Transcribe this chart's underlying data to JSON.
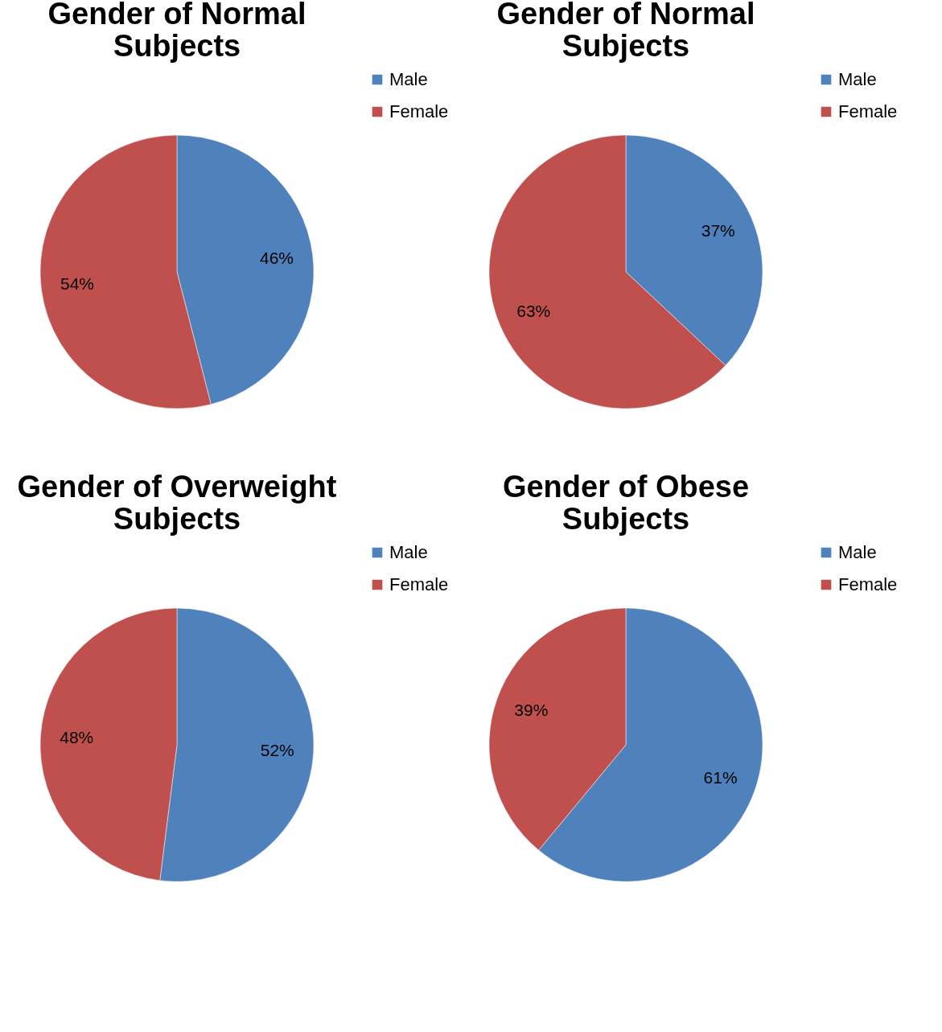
{
  "chart_data": [
    {
      "type": "pie",
      "title": "Gender of Normal Subjects",
      "categories": [
        "Male",
        "Female"
      ],
      "values": [
        46,
        54
      ],
      "colors": [
        "#4f81bd",
        "#c0504d"
      ],
      "value_labels": [
        "46%",
        "54%"
      ],
      "legend": "right"
    },
    {
      "type": "pie",
      "title": "Gender of Normal Subjects",
      "categories": [
        "Male",
        "Female"
      ],
      "values": [
        37,
        63
      ],
      "colors": [
        "#4f81bd",
        "#c0504d"
      ],
      "value_labels": [
        "37%",
        "63%"
      ],
      "legend": "right"
    },
    {
      "type": "pie",
      "title": "Gender of Overweight Subjects",
      "categories": [
        "Male",
        "Female"
      ],
      "values": [
        52,
        48
      ],
      "colors": [
        "#4f81bd",
        "#c0504d"
      ],
      "value_labels": [
        "52%",
        "48%"
      ],
      "legend": "right"
    },
    {
      "type": "pie",
      "title": "Gender of Obese Subjects",
      "categories": [
        "Male",
        "Female"
      ],
      "values": [
        61,
        39
      ],
      "colors": [
        "#4f81bd",
        "#c0504d"
      ],
      "value_labels": [
        "61%",
        "39%"
      ],
      "legend": "right"
    }
  ]
}
